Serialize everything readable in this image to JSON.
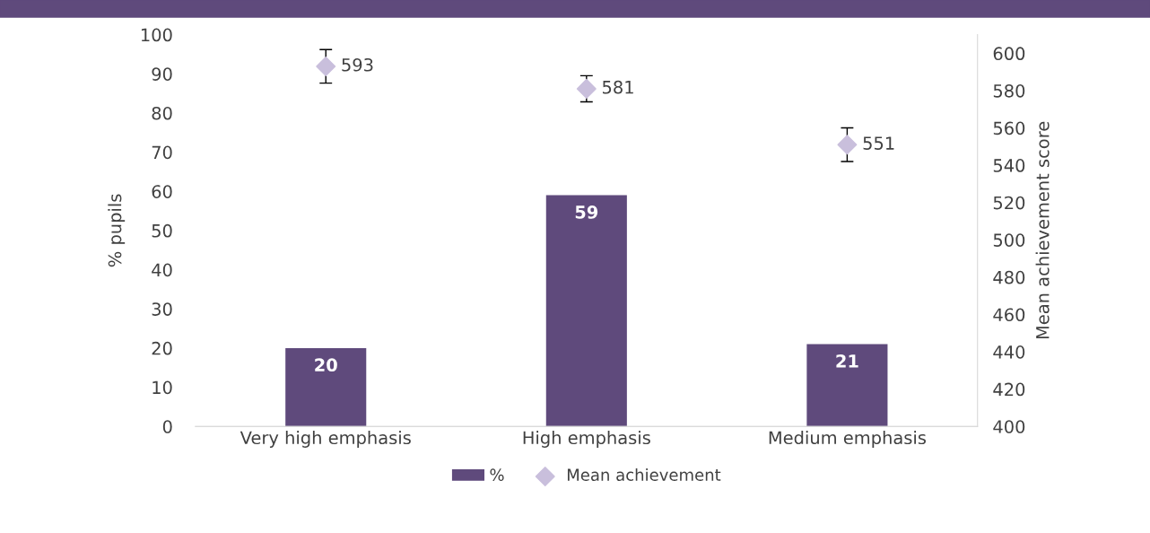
{
  "chart_data": {
    "type": "bar",
    "categories": [
      "Very high emphasis",
      "High emphasis",
      "Medium emphasis"
    ],
    "ylabel": "% pupils",
    "y2label": "Mean achievement score",
    "series": [
      {
        "name": "%",
        "color": "#5f4a7c",
        "values": [
          20,
          59,
          21
        ],
        "data_labels": true
      },
      {
        "name": "Mean achievement",
        "type": "scatter",
        "axis": "y2",
        "color": "#c9bfdc",
        "values": [
          593,
          581,
          551
        ],
        "errors": [
          9,
          7,
          9
        ],
        "data_labels": true
      }
    ],
    "ylim": [
      0,
      100
    ],
    "yticks": [
      0,
      10,
      20,
      30,
      40,
      50,
      60,
      70,
      80,
      90,
      100
    ],
    "y2lim": [
      400,
      610
    ],
    "y2ticks": [
      400,
      420,
      440,
      460,
      480,
      500,
      520,
      540,
      560,
      580,
      600
    ],
    "marker": "diamond",
    "grid": false,
    "legend": "bottom"
  }
}
